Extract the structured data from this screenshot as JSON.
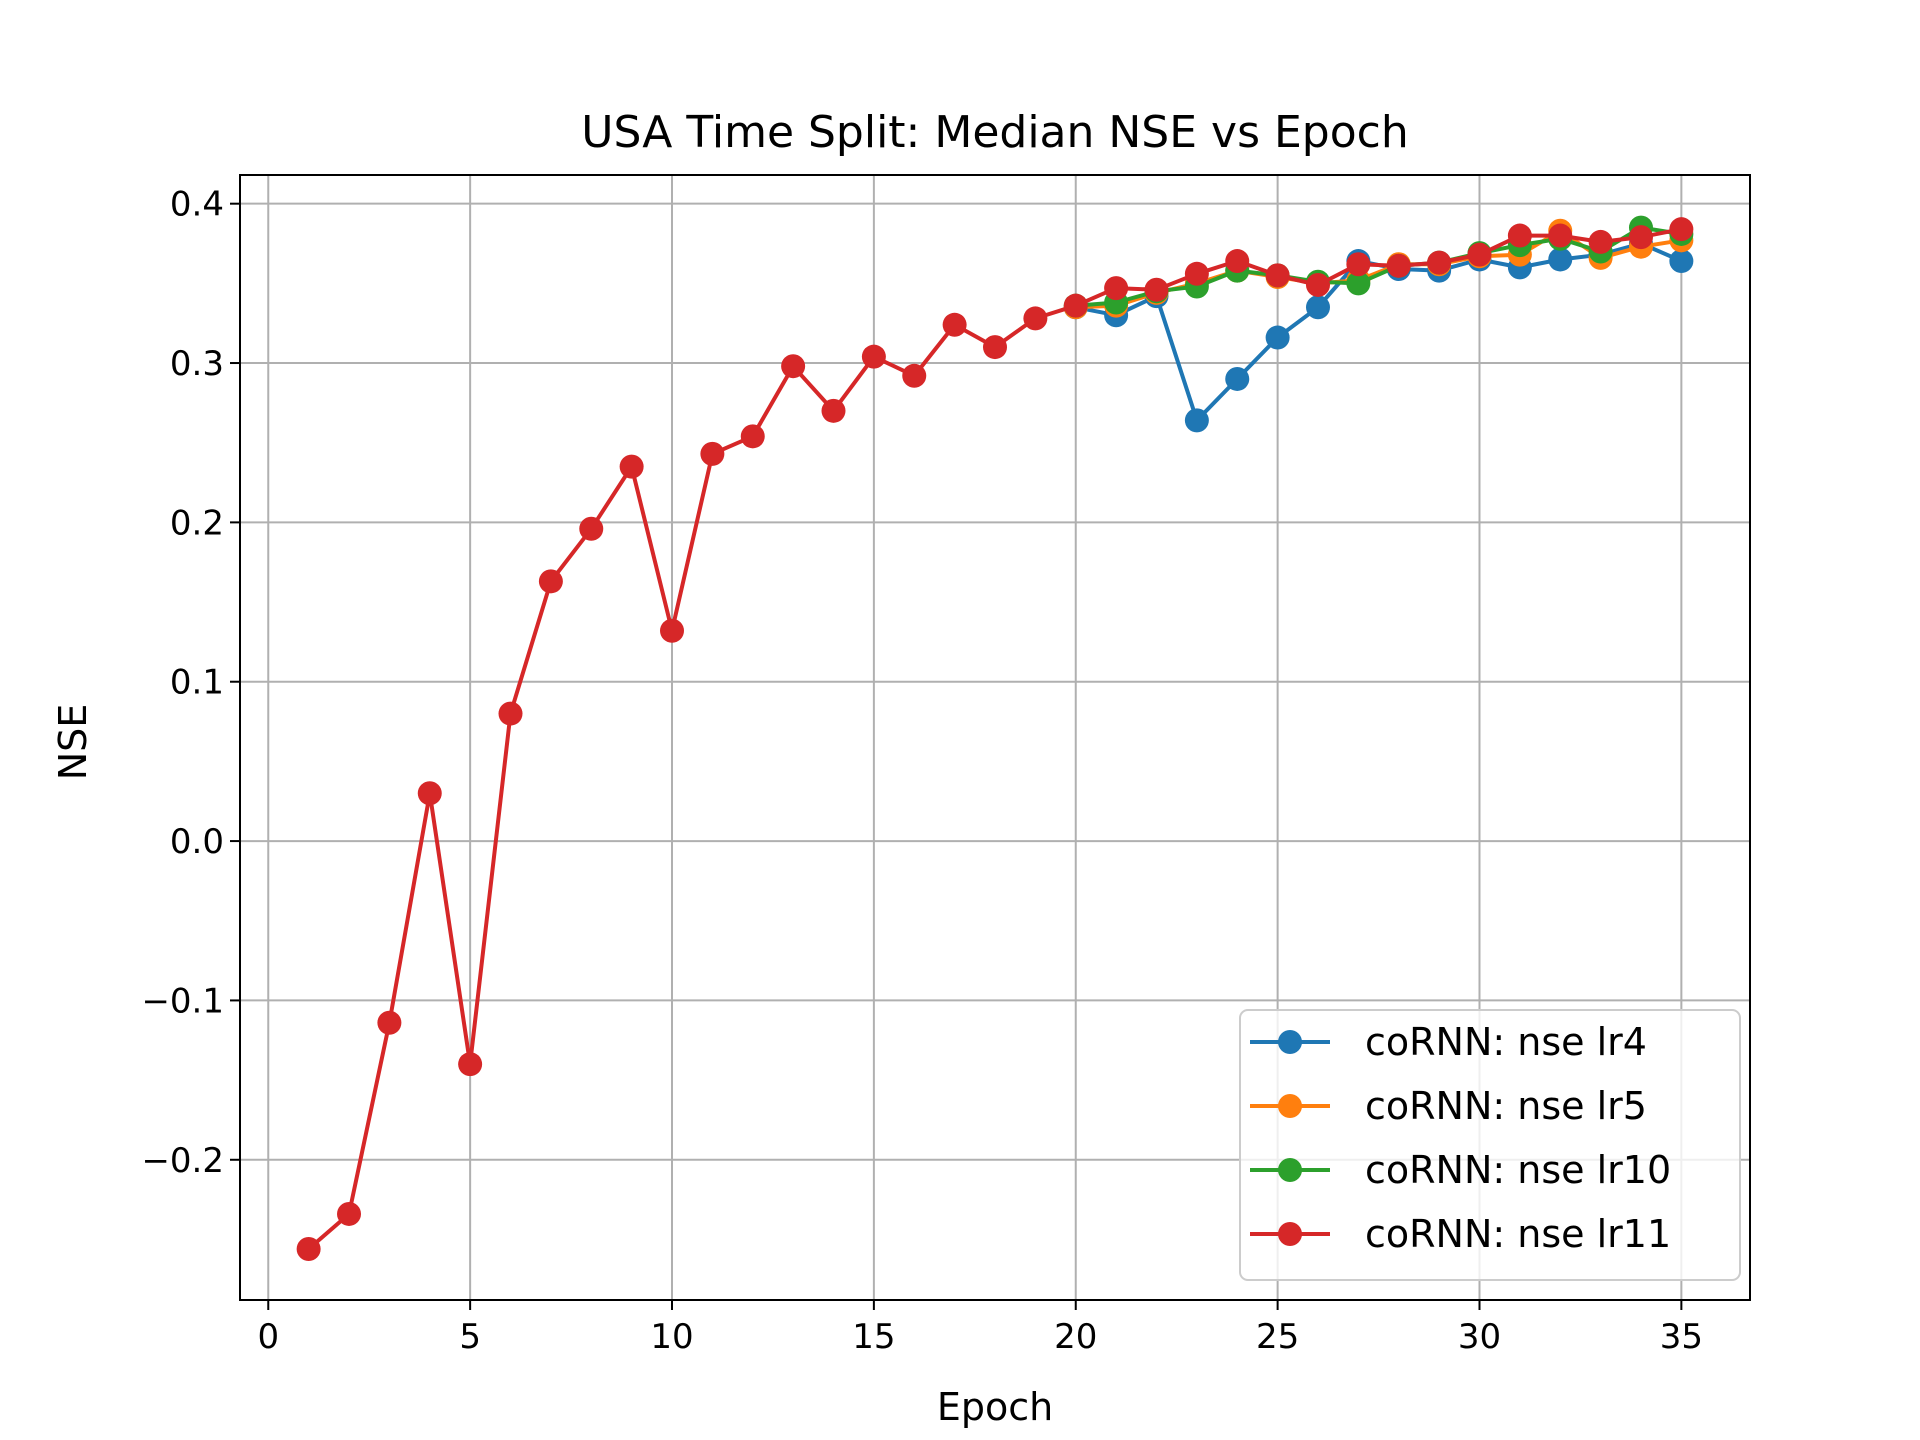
{
  "chart_data": {
    "type": "line",
    "title": "USA Time Split: Median NSE vs Epoch",
    "xlabel": "Epoch",
    "ylabel": "NSE",
    "xlim": [
      -0.7,
      36.7
    ],
    "ylim": [
      -0.288,
      0.418
    ],
    "x_ticks": [
      0,
      5,
      10,
      15,
      20,
      25,
      30,
      35
    ],
    "x_tick_labels": [
      "0",
      "5",
      "10",
      "15",
      "20",
      "25",
      "30",
      "35"
    ],
    "y_ticks": [
      -0.2,
      -0.1,
      0.0,
      0.1,
      0.2,
      0.3,
      0.4
    ],
    "y_tick_labels": [
      "−0.2",
      "−0.1",
      "0.0",
      "0.1",
      "0.2",
      "0.3",
      "0.4"
    ],
    "grid": true,
    "legend_position": "lower-right",
    "series": [
      {
        "name": "coRNN: nse lr4",
        "color": "#1f77b4",
        "x": [
          20,
          21,
          22,
          23,
          24,
          25,
          26,
          27,
          28,
          29,
          30,
          31,
          32,
          33,
          34,
          35
        ],
        "values": [
          0.335,
          0.33,
          0.342,
          0.264,
          0.29,
          0.316,
          0.335,
          0.364,
          0.359,
          0.358,
          0.365,
          0.36,
          0.365,
          0.368,
          0.375,
          0.364
        ]
      },
      {
        "name": "coRNN: nse lr5",
        "color": "#ff7f0e",
        "x": [
          20,
          21,
          22,
          23,
          24,
          25,
          26,
          27,
          28,
          29,
          30,
          31,
          32,
          33,
          34,
          35
        ],
        "values": [
          0.335,
          0.336,
          0.344,
          0.35,
          0.358,
          0.354,
          0.35,
          0.352,
          0.362,
          0.362,
          0.367,
          0.368,
          0.383,
          0.366,
          0.373,
          0.377
        ]
      },
      {
        "name": "coRNN: nse lr10",
        "color": "#2ca02c",
        "x": [
          20,
          21,
          22,
          23,
          24,
          25,
          26,
          27,
          28,
          29,
          30,
          31,
          32,
          33,
          34,
          35
        ],
        "values": [
          0.336,
          0.338,
          0.345,
          0.348,
          0.358,
          0.355,
          0.351,
          0.35,
          0.361,
          0.363,
          0.369,
          0.374,
          0.378,
          0.37,
          0.385,
          0.381
        ]
      },
      {
        "name": "coRNN: nse lr11",
        "color": "#d62728",
        "x": [
          1,
          2,
          3,
          4,
          5,
          6,
          7,
          8,
          9,
          10,
          11,
          12,
          13,
          14,
          15,
          16,
          17,
          18,
          19,
          20,
          21,
          22,
          23,
          24,
          25,
          26,
          27,
          28,
          29,
          30,
          31,
          32,
          33,
          34,
          35
        ],
        "values": [
          -0.256,
          -0.234,
          -0.114,
          0.03,
          -0.14,
          0.08,
          0.163,
          0.196,
          0.235,
          0.132,
          0.243,
          0.254,
          0.298,
          0.27,
          0.304,
          0.292,
          0.324,
          0.31,
          0.328,
          0.336,
          0.347,
          0.346,
          0.356,
          0.364,
          0.355,
          0.349,
          0.362,
          0.361,
          0.363,
          0.368,
          0.38,
          0.38,
          0.376,
          0.379,
          0.384
        ]
      }
    ]
  }
}
